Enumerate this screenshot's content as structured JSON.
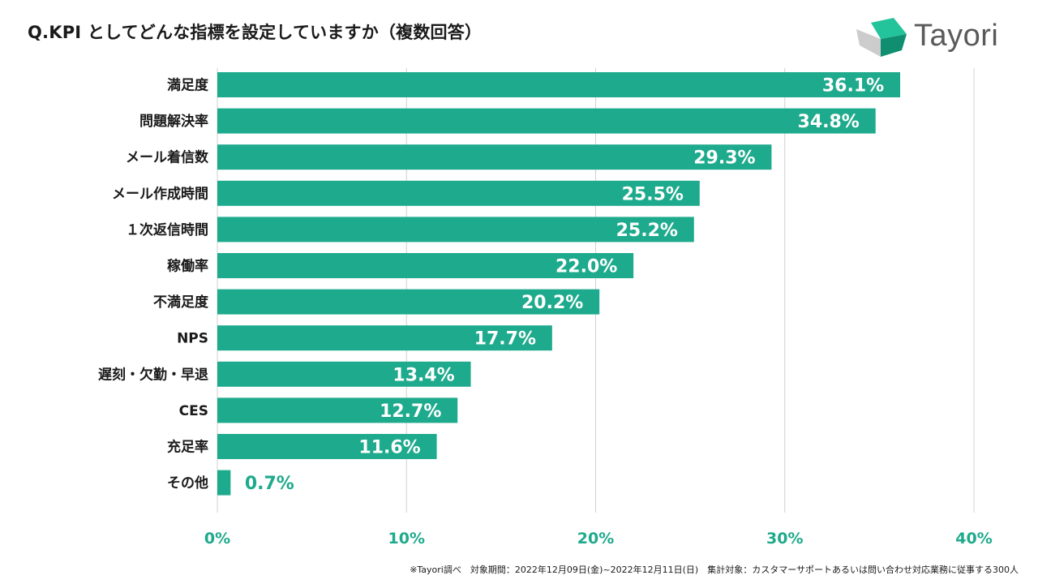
{
  "page": {
    "title": "Q.KPI としてどんな指標を設定していますか（複数回答）",
    "brand": "Tayori",
    "footnote": "※Tayori調べ　対象期間：2022年12月09日(金)~2022年12月11日(日)　集計対象：カスタマーサポートあるいは問い合わせ対応業務に従事する300人"
  },
  "colors": {
    "bar": "#1eaa8c",
    "label_inside": "#ffffff",
    "label_outside": "#1eaa8c",
    "axis": "#d0d0d0",
    "logo_dark": "#0f8f70",
    "logo_light": "#23c49b",
    "logo_gray": "#cccccc"
  },
  "chart_data": {
    "type": "bar",
    "orientation": "horizontal",
    "title": "Q.KPI としてどんな指標を設定していますか（複数回答）",
    "categories": [
      "満足度",
      "問題解決率",
      "メール着信数",
      "メール作成時間",
      "１次返信時間",
      "稼働率",
      "不満足度",
      "NPS",
      "遅刻・欠勤・早退",
      "CES",
      "充足率",
      "その他"
    ],
    "values": [
      36.1,
      34.8,
      29.3,
      25.5,
      25.2,
      22.0,
      20.2,
      17.7,
      13.4,
      12.7,
      11.6,
      0.7
    ],
    "value_labels": [
      "36.1%",
      "34.8%",
      "29.3%",
      "25.5%",
      "25.2%",
      "22.0%",
      "20.2%",
      "17.7%",
      "13.4%",
      "12.7%",
      "11.6%",
      "0.7%"
    ],
    "xlim": [
      0,
      40
    ],
    "xticks": [
      0,
      10,
      20,
      30,
      40
    ],
    "xtick_labels": [
      "0%",
      "10%",
      "20%",
      "30%",
      "40%"
    ],
    "grid": true,
    "legend": "none",
    "xlabel": "",
    "ylabel": ""
  }
}
